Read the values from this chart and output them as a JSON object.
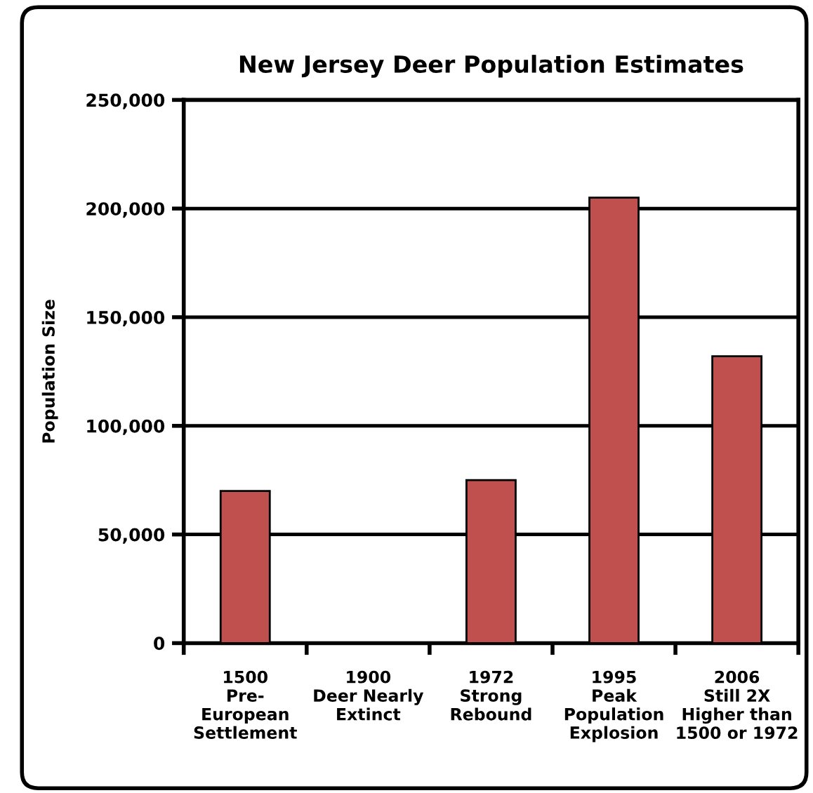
{
  "chart_data": {
    "type": "bar",
    "title": "New Jersey Deer Population Estimates",
    "ylabel": "Population Size",
    "categories": [
      "1500\nPre-\nEuropean\nSettlement",
      "1900\nDeer Nearly\nExtinct",
      "1972\nStrong\nRebound",
      "1995\nPeak\nPopulation\nExplosion",
      "2006\nStill 2X\nHigher than\n1500 or 1972"
    ],
    "values": [
      70000,
      0,
      75000,
      205000,
      132000
    ],
    "color": "#c0504d",
    "ylim": [
      0,
      250000
    ],
    "yticks": [
      {
        "value": 0,
        "label": "0"
      },
      {
        "value": 50000,
        "label": "50,000"
      },
      {
        "value": 100000,
        "label": "100,000"
      },
      {
        "value": 150000,
        "label": "150,000"
      },
      {
        "value": 200000,
        "label": "200,000"
      },
      {
        "value": 250000,
        "label": "250,000"
      }
    ],
    "grid": "y",
    "legend": false
  }
}
